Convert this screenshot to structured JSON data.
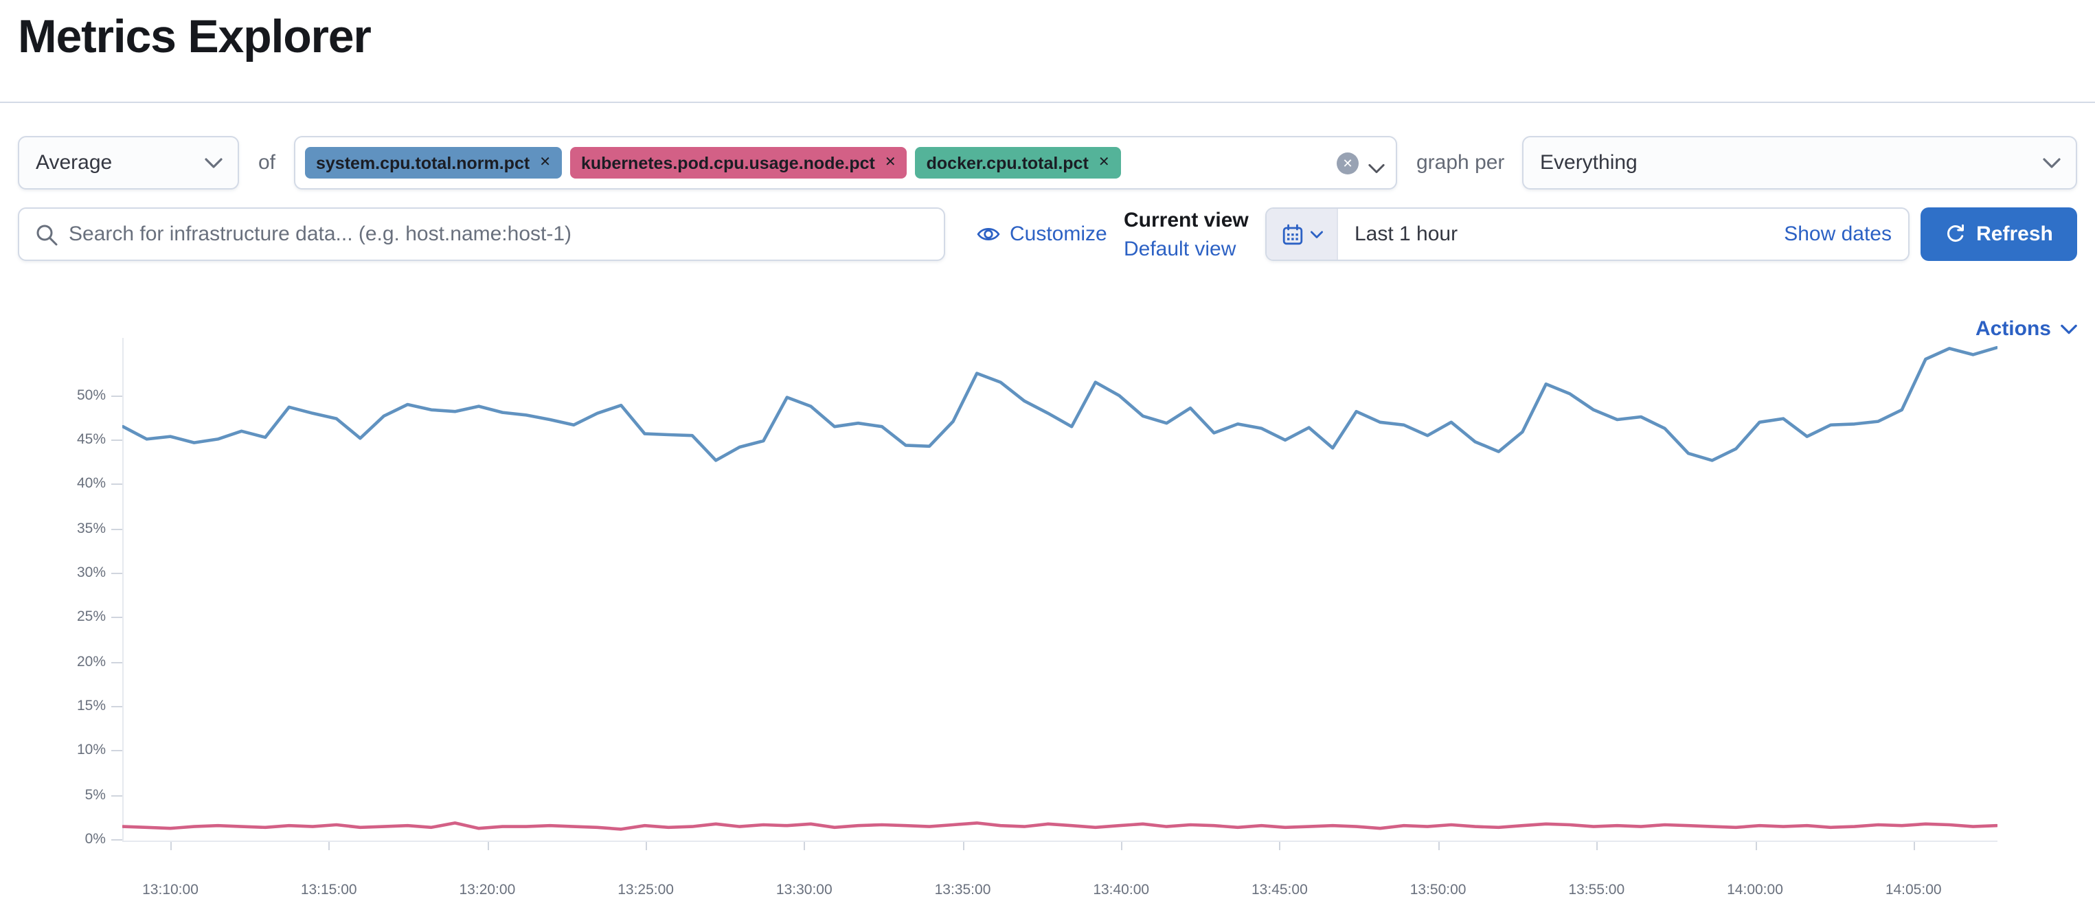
{
  "page": {
    "title": "Metrics Explorer"
  },
  "metric_bar": {
    "aggregation_select": {
      "value": "Average"
    },
    "of_label": "of",
    "metrics": [
      {
        "label": "system.cpu.total.norm.pct",
        "color": "#6092C0"
      },
      {
        "label": "kubernetes.pod.cpu.usage.node.pct",
        "color": "#D36086"
      },
      {
        "label": "docker.cpu.total.pct",
        "color": "#54B399"
      }
    ],
    "graph_per_label": "graph per",
    "group_by_select": {
      "value": "Everything"
    }
  },
  "toolbar": {
    "search": {
      "placeholder": "Search for infrastructure data... (e.g. host.name:host-1)"
    },
    "customize_label": "Customize",
    "view_switcher": {
      "title": "Current view",
      "link": "Default view"
    },
    "time_picker": {
      "value": "Last 1 hour",
      "show_dates_label": "Show dates"
    },
    "refresh_label": "Refresh"
  },
  "chart_header": {
    "actions_label": "Actions"
  },
  "chart_data": {
    "type": "line",
    "title": "",
    "xlabel": "",
    "ylabel": "",
    "grid": false,
    "legend_position": "none",
    "ylim": [
      0,
      56.5
    ],
    "y_axis": {
      "tick_labels": [
        "50%",
        "45%",
        "40%",
        "35%",
        "30%",
        "25%",
        "20%",
        "15%",
        "10%",
        "5%",
        "0%"
      ],
      "tick_values": [
        50,
        45,
        40,
        35,
        30,
        25,
        20,
        15,
        10,
        5,
        0
      ]
    },
    "x_axis": {
      "tick_labels": [
        "13:10:00",
        "13:15:00",
        "13:20:00",
        "13:25:00",
        "13:30:00",
        "13:35:00",
        "13:40:00",
        "13:45:00",
        "13:50:00",
        "13:55:00",
        "14:00:00",
        "14:05:00"
      ]
    },
    "series": [
      {
        "name": "system.cpu.total.norm.pct",
        "color": "#6092C0",
        "unit": "%",
        "values": [
          46.5,
          45.1,
          45.4,
          44.7,
          45.1,
          46.0,
          45.3,
          48.7,
          48.0,
          47.4,
          45.2,
          47.7,
          49.0,
          48.4,
          48.2,
          48.8,
          48.1,
          47.8,
          47.3,
          46.7,
          48.0,
          48.9,
          45.7,
          45.6,
          45.5,
          42.7,
          44.2,
          44.9,
          49.8,
          48.8,
          46.5,
          46.9,
          46.5,
          44.4,
          44.3,
          47.1,
          52.5,
          51.5,
          49.4,
          48.0,
          46.5,
          51.5,
          50.0,
          47.7,
          46.9,
          48.6,
          45.8,
          46.8,
          46.3,
          45.0,
          46.4,
          44.1,
          48.2,
          47.0,
          46.7,
          45.5,
          47.0,
          44.8,
          43.7,
          45.9,
          51.3,
          50.2,
          48.4,
          47.3,
          47.6,
          46.3,
          43.5,
          42.7,
          44.0,
          47.0,
          47.4,
          45.4,
          46.7,
          46.8,
          47.1,
          48.4,
          54.1,
          55.3,
          54.6,
          55.4
        ]
      },
      {
        "name": "kubernetes.pod.cpu.usage.node.pct",
        "color": "#D36086",
        "unit": "%",
        "values": [
          1.5,
          1.4,
          1.3,
          1.5,
          1.6,
          1.5,
          1.4,
          1.6,
          1.5,
          1.7,
          1.4,
          1.5,
          1.6,
          1.4,
          1.9,
          1.3,
          1.5,
          1.5,
          1.6,
          1.5,
          1.4,
          1.2,
          1.6,
          1.4,
          1.5,
          1.8,
          1.5,
          1.7,
          1.6,
          1.8,
          1.4,
          1.6,
          1.7,
          1.6,
          1.5,
          1.7,
          1.9,
          1.6,
          1.5,
          1.8,
          1.6,
          1.4,
          1.6,
          1.8,
          1.5,
          1.7,
          1.6,
          1.4,
          1.6,
          1.4,
          1.5,
          1.6,
          1.5,
          1.3,
          1.6,
          1.5,
          1.7,
          1.5,
          1.4,
          1.6,
          1.8,
          1.7,
          1.5,
          1.6,
          1.5,
          1.7,
          1.6,
          1.5,
          1.4,
          1.6,
          1.5,
          1.6,
          1.4,
          1.5,
          1.7,
          1.6,
          1.8,
          1.7,
          1.5,
          1.6
        ]
      }
    ]
  }
}
